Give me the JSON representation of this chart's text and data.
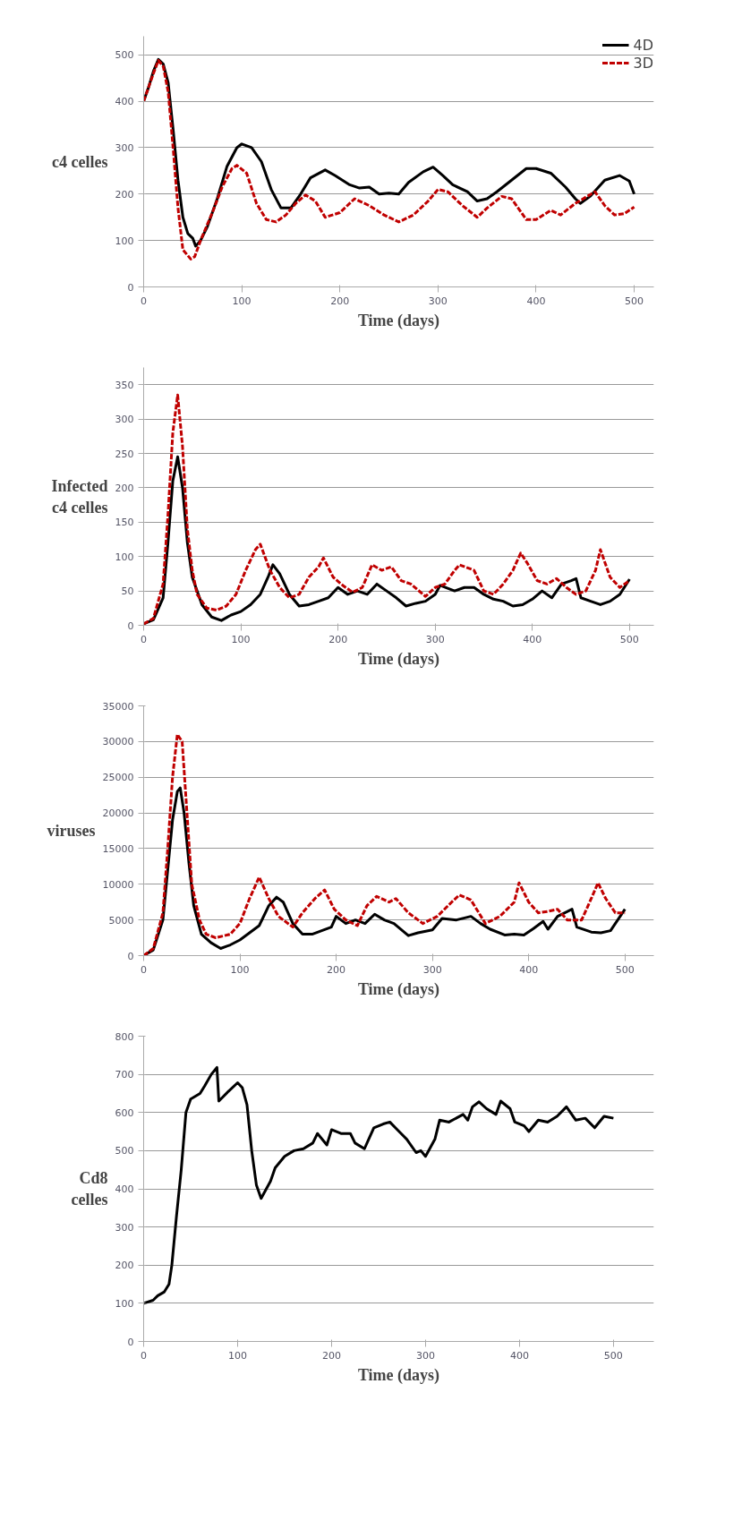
{
  "chart_data": [
    {
      "type": "line",
      "ylabel": "c4 celles",
      "xlabel": "Time (days)",
      "xlim": [
        0,
        520
      ],
      "ylim": [
        0,
        540
      ],
      "xticks": [
        0,
        100,
        200,
        300,
        400,
        500
      ],
      "yticks": [
        0,
        100,
        200,
        300,
        400,
        500
      ],
      "grid": "y",
      "legend": "top right",
      "series": [
        {
          "name": "4D",
          "color": "#000000",
          "line_style": "solid",
          "x": [
            0,
            5,
            10,
            15,
            20,
            25,
            30,
            35,
            40,
            45,
            50,
            53,
            58,
            65,
            75,
            85,
            95,
            100,
            110,
            120,
            130,
            140,
            150,
            160,
            170,
            185,
            195,
            210,
            220,
            230,
            240,
            250,
            260,
            270,
            285,
            295,
            305,
            315,
            330,
            340,
            350,
            360,
            375,
            390,
            400,
            415,
            430,
            440,
            445,
            455,
            470,
            485,
            495,
            500
          ],
          "values": [
            400,
            430,
            465,
            490,
            480,
            440,
            340,
            230,
            150,
            115,
            105,
            88,
            100,
            130,
            190,
            260,
            300,
            308,
            300,
            270,
            210,
            170,
            170,
            200,
            235,
            252,
            240,
            220,
            213,
            215,
            200,
            202,
            200,
            225,
            248,
            258,
            240,
            220,
            205,
            185,
            190,
            205,
            230,
            255,
            255,
            245,
            215,
            190,
            180,
            195,
            230,
            240,
            228,
            200
          ]
        },
        {
          "name": "3D",
          "color": "#c00000",
          "line_style": "dashed",
          "x": [
            0,
            10,
            15,
            20,
            25,
            30,
            35,
            40,
            48,
            52,
            58,
            70,
            80,
            90,
            95,
            105,
            115,
            125,
            135,
            145,
            155,
            165,
            175,
            185,
            200,
            215,
            230,
            245,
            260,
            275,
            290,
            300,
            310,
            325,
            340,
            350,
            365,
            375,
            390,
            400,
            415,
            425,
            440,
            460,
            470,
            480,
            490,
            500
          ],
          "values": [
            400,
            460,
            488,
            475,
            420,
            300,
            170,
            80,
            60,
            65,
            100,
            160,
            215,
            255,
            262,
            245,
            180,
            145,
            140,
            155,
            180,
            198,
            185,
            150,
            160,
            190,
            175,
            155,
            140,
            155,
            185,
            210,
            205,
            175,
            150,
            170,
            195,
            190,
            145,
            145,
            165,
            155,
            180,
            205,
            175,
            155,
            158,
            172
          ]
        }
      ]
    },
    {
      "type": "line",
      "ylabel": "Infected\nc4 celles",
      "xlabel": "Time (days)",
      "xlim": [
        0,
        525
      ],
      "ylim": [
        0,
        375
      ],
      "xticks": [
        0,
        100,
        200,
        300,
        400,
        500
      ],
      "yticks": [
        0,
        50,
        100,
        150,
        200,
        250,
        300,
        350
      ],
      "grid": "y",
      "series": [
        {
          "color": "#000000",
          "line_style": "solid",
          "x": [
            0,
            10,
            20,
            25,
            30,
            35,
            40,
            45,
            50,
            60,
            70,
            80,
            90,
            100,
            110,
            120,
            128,
            133,
            140,
            150,
            160,
            170,
            180,
            190,
            200,
            210,
            220,
            230,
            240,
            250,
            260,
            270,
            280,
            290,
            300,
            305,
            320,
            330,
            340,
            350,
            360,
            370,
            380,
            390,
            400,
            410,
            420,
            430,
            440,
            445,
            450,
            460,
            470,
            480,
            490,
            500
          ],
          "values": [
            2,
            8,
            40,
            120,
            210,
            245,
            200,
            120,
            70,
            30,
            12,
            7,
            15,
            20,
            30,
            45,
            70,
            88,
            75,
            45,
            28,
            30,
            35,
            40,
            55,
            45,
            50,
            45,
            60,
            50,
            40,
            28,
            32,
            35,
            45,
            58,
            50,
            55,
            55,
            45,
            38,
            35,
            28,
            30,
            38,
            50,
            40,
            60,
            65,
            68,
            40,
            35,
            30,
            35,
            45,
            67
          ]
        },
        {
          "color": "#c00000",
          "line_style": "dashed",
          "x": [
            0,
            10,
            20,
            25,
            30,
            35,
            40,
            45,
            50,
            55,
            65,
            75,
            85,
            95,
            105,
            115,
            120,
            130,
            140,
            150,
            160,
            170,
            180,
            185,
            195,
            205,
            215,
            225,
            235,
            245,
            255,
            265,
            275,
            290,
            300,
            310,
            320,
            325,
            340,
            350,
            360,
            370,
            380,
            388,
            395,
            405,
            415,
            425,
            435,
            445,
            455,
            465,
            470,
            480,
            490,
            500
          ],
          "values": [
            2,
            10,
            60,
            160,
            280,
            335,
            260,
            140,
            80,
            45,
            25,
            22,
            28,
            45,
            80,
            110,
            118,
            80,
            55,
            40,
            45,
            70,
            85,
            98,
            70,
            58,
            48,
            55,
            88,
            80,
            85,
            65,
            60,
            42,
            55,
            60,
            80,
            88,
            80,
            50,
            45,
            60,
            80,
            105,
            90,
            65,
            60,
            68,
            55,
            45,
            50,
            80,
            110,
            70,
            55,
            65
          ]
        }
      ]
    },
    {
      "type": "line",
      "ylabel": "viruses",
      "xlabel": "Time (days)",
      "xlim": [
        0,
        530
      ],
      "ylim": [
        0,
        35000
      ],
      "xticks": [
        0,
        100,
        200,
        300,
        400,
        500
      ],
      "yticks": [
        0,
        5000,
        10000,
        15000,
        20000,
        25000,
        30000,
        35000
      ],
      "grid": "y",
      "series": [
        {
          "color": "#000000",
          "line_style": "solid",
          "x": [
            0,
            10,
            20,
            25,
            30,
            35,
            38,
            42,
            47,
            52,
            60,
            70,
            80,
            90,
            100,
            110,
            120,
            130,
            138,
            145,
            155,
            165,
            175,
            185,
            195,
            200,
            210,
            220,
            230,
            240,
            250,
            260,
            275,
            285,
            300,
            310,
            325,
            340,
            350,
            360,
            375,
            385,
            395,
            405,
            415,
            420,
            430,
            445,
            450,
            465,
            475,
            485,
            495,
            500
          ],
          "values": [
            0,
            800,
            5000,
            12000,
            19000,
            23000,
            23500,
            20000,
            13000,
            7000,
            3000,
            1800,
            1000,
            1500,
            2200,
            3200,
            4200,
            7000,
            8200,
            7500,
            4500,
            3000,
            3000,
            3500,
            4000,
            5500,
            4500,
            5000,
            4500,
            5800,
            5000,
            4500,
            2800,
            3200,
            3600,
            5200,
            5000,
            5500,
            4500,
            3700,
            2900,
            3000,
            2900,
            3800,
            4800,
            3700,
            5500,
            6500,
            4000,
            3300,
            3200,
            3500,
            5500,
            6500
          ]
        },
        {
          "color": "#c00000",
          "line_style": "dashed",
          "x": [
            0,
            10,
            20,
            25,
            30,
            35,
            40,
            45,
            50,
            58,
            65,
            75,
            90,
            100,
            110,
            120,
            130,
            140,
            155,
            165,
            178,
            188,
            198,
            210,
            222,
            232,
            242,
            255,
            262,
            275,
            290,
            305,
            320,
            328,
            340,
            355,
            370,
            385,
            390,
            400,
            410,
            420,
            430,
            440,
            455,
            465,
            472,
            480,
            490,
            500
          ],
          "values": [
            0,
            1000,
            6000,
            15000,
            25000,
            31000,
            30000,
            20000,
            10000,
            5000,
            3000,
            2500,
            3000,
            4500,
            8000,
            11000,
            8000,
            5500,
            4000,
            6000,
            8000,
            9200,
            6500,
            5000,
            4200,
            7000,
            8300,
            7500,
            8000,
            6000,
            4500,
            5500,
            7500,
            8500,
            7800,
            4500,
            5500,
            7500,
            10200,
            7500,
            6000,
            6200,
            6500,
            5000,
            5000,
            8000,
            10200,
            8000,
            6000,
            6000
          ]
        }
      ]
    },
    {
      "type": "line",
      "ylabel": "Cd8\ncelles",
      "xlabel": "Time (days)",
      "xlim": [
        0,
        543
      ],
      "ylim": [
        0,
        800
      ],
      "xticks": [
        0,
        100,
        200,
        300,
        400,
        500
      ],
      "yticks": [
        0,
        100,
        200,
        300,
        400,
        500,
        600,
        700,
        800
      ],
      "grid": "y",
      "series": [
        {
          "color": "#000000",
          "line_style": "solid",
          "x": [
            0,
            10,
            15,
            22,
            27,
            30,
            35,
            40,
            45,
            50,
            60,
            65,
            72,
            78,
            80,
            90,
            100,
            105,
            110,
            115,
            120,
            125,
            135,
            140,
            150,
            160,
            170,
            180,
            185,
            195,
            200,
            210,
            220,
            225,
            235,
            245,
            255,
            262,
            270,
            280,
            290,
            295,
            300,
            310,
            315,
            325,
            340,
            345,
            350,
            357,
            365,
            375,
            380,
            390,
            395,
            405,
            410,
            420,
            430,
            440,
            450,
            460,
            470,
            480,
            490,
            500
          ],
          "values": [
            100,
            108,
            120,
            130,
            150,
            200,
            330,
            450,
            600,
            635,
            650,
            670,
            700,
            718,
            630,
            655,
            678,
            665,
            620,
            500,
            410,
            375,
            420,
            455,
            485,
            500,
            505,
            520,
            545,
            515,
            555,
            545,
            545,
            520,
            505,
            560,
            570,
            575,
            555,
            530,
            495,
            500,
            485,
            530,
            580,
            575,
            595,
            580,
            615,
            628,
            610,
            595,
            630,
            610,
            575,
            565,
            550,
            580,
            575,
            590,
            615,
            580,
            585,
            560,
            590,
            585
          ]
        }
      ]
    }
  ]
}
